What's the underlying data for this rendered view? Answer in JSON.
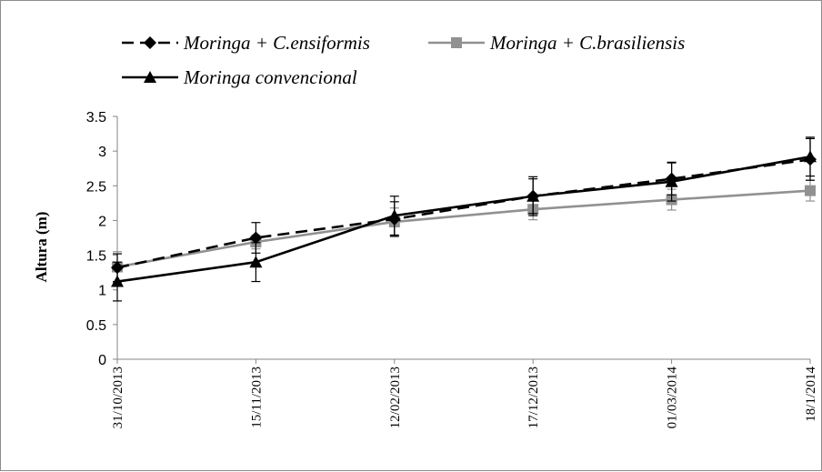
{
  "chart_data": {
    "type": "line",
    "title": "",
    "xlabel": "",
    "ylabel": "Altura (m)",
    "ylim": [
      0,
      3.5
    ],
    "yticks": [
      "0",
      "0.5",
      "1",
      "1.5",
      "2",
      "2.5",
      "3",
      "3.5"
    ],
    "categories": [
      "31/10/2013",
      "15/11/2013",
      "12/02/2013",
      "17/12/2013",
      "01/03/2014",
      "18/1/2014"
    ],
    "legend_position": "top",
    "grid": false,
    "series": [
      {
        "name": "Moringa + C.ensiformis",
        "color": "#000000",
        "dash": "dashed",
        "marker": "diamond",
        "values": [
          1.32,
          1.75,
          2.02,
          2.35,
          2.6,
          2.88
        ],
        "errors": [
          0.2,
          0.22,
          0.25,
          0.25,
          0.23,
          0.3
        ]
      },
      {
        "name": "Moringa + C.brasiliensis",
        "color": "#919191",
        "dash": "solid",
        "marker": "square",
        "values": [
          1.33,
          1.69,
          1.98,
          2.16,
          2.3,
          2.43
        ],
        "errors": [
          0.22,
          0.1,
          0.2,
          0.15,
          0.15,
          0.15
        ]
      },
      {
        "name": "Moringa convencional",
        "color": "#000000",
        "dash": "solid",
        "marker": "triangle",
        "values": [
          1.12,
          1.4,
          2.07,
          2.35,
          2.56,
          2.92
        ],
        "errors": [
          0.28,
          0.28,
          0.28,
          0.28,
          0.28,
          0.28
        ]
      }
    ]
  }
}
